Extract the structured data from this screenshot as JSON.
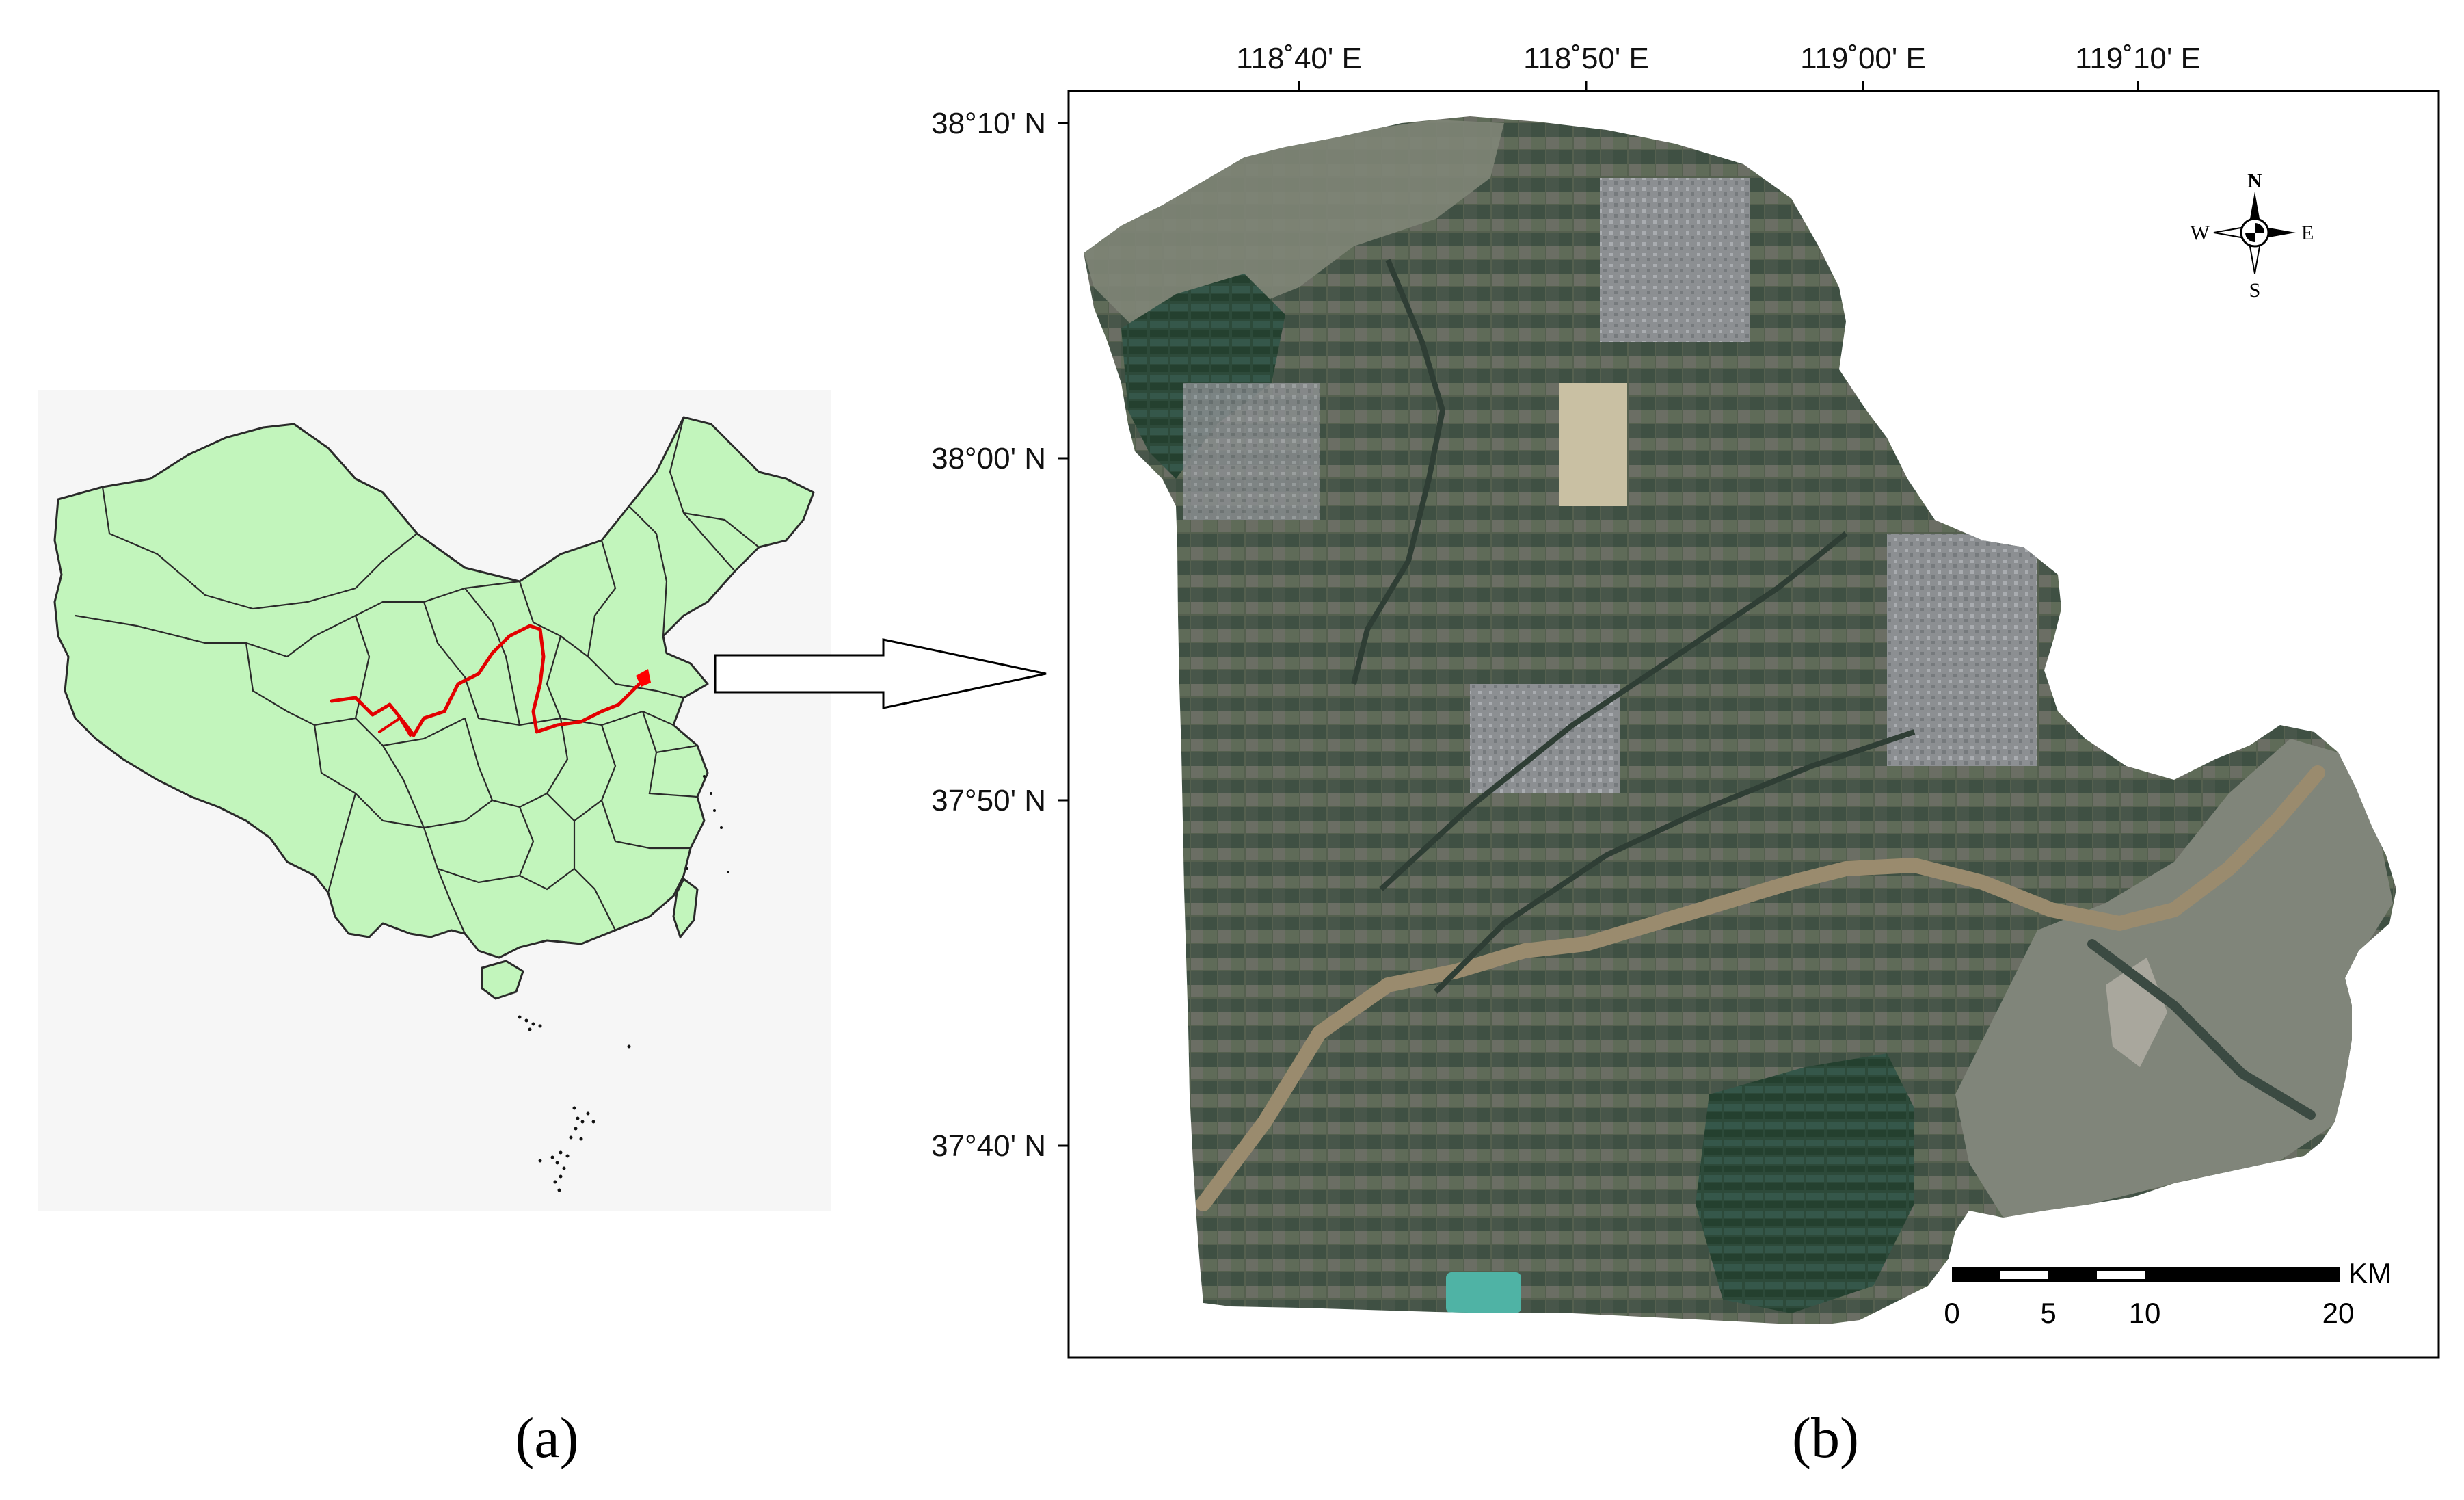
{
  "panel_a": {
    "caption": "(a)",
    "colors": {
      "land": "#c2f5bc",
      "boundary": "#2a2a2a",
      "river": "#e30000",
      "highlight": "#ff0000",
      "background": "#f5f5f5"
    }
  },
  "panel_b": {
    "caption": "(b)",
    "longitude_labels": [
      "118˚40' E",
      "118˚50' E",
      "119˚00' E",
      "119˚10' E"
    ],
    "latitude_labels": [
      "38°10' N",
      "38°00' N",
      "37°50' N",
      "37°40' N"
    ],
    "compass": {
      "north": "N",
      "south": "S",
      "east": "E",
      "west": "W"
    },
    "scale_bar": {
      "unit": "KM",
      "labels": [
        "0",
        "5",
        "10",
        "20"
      ]
    },
    "colors": {
      "frame": "#000000",
      "imagery_base": "#4e5a4b",
      "tidal_flat": "#7f8577",
      "river": "#9a8b6e",
      "farmland": "#2f4a36",
      "urban": "#8c8f92"
    }
  },
  "arrow": {
    "direction": "right"
  }
}
